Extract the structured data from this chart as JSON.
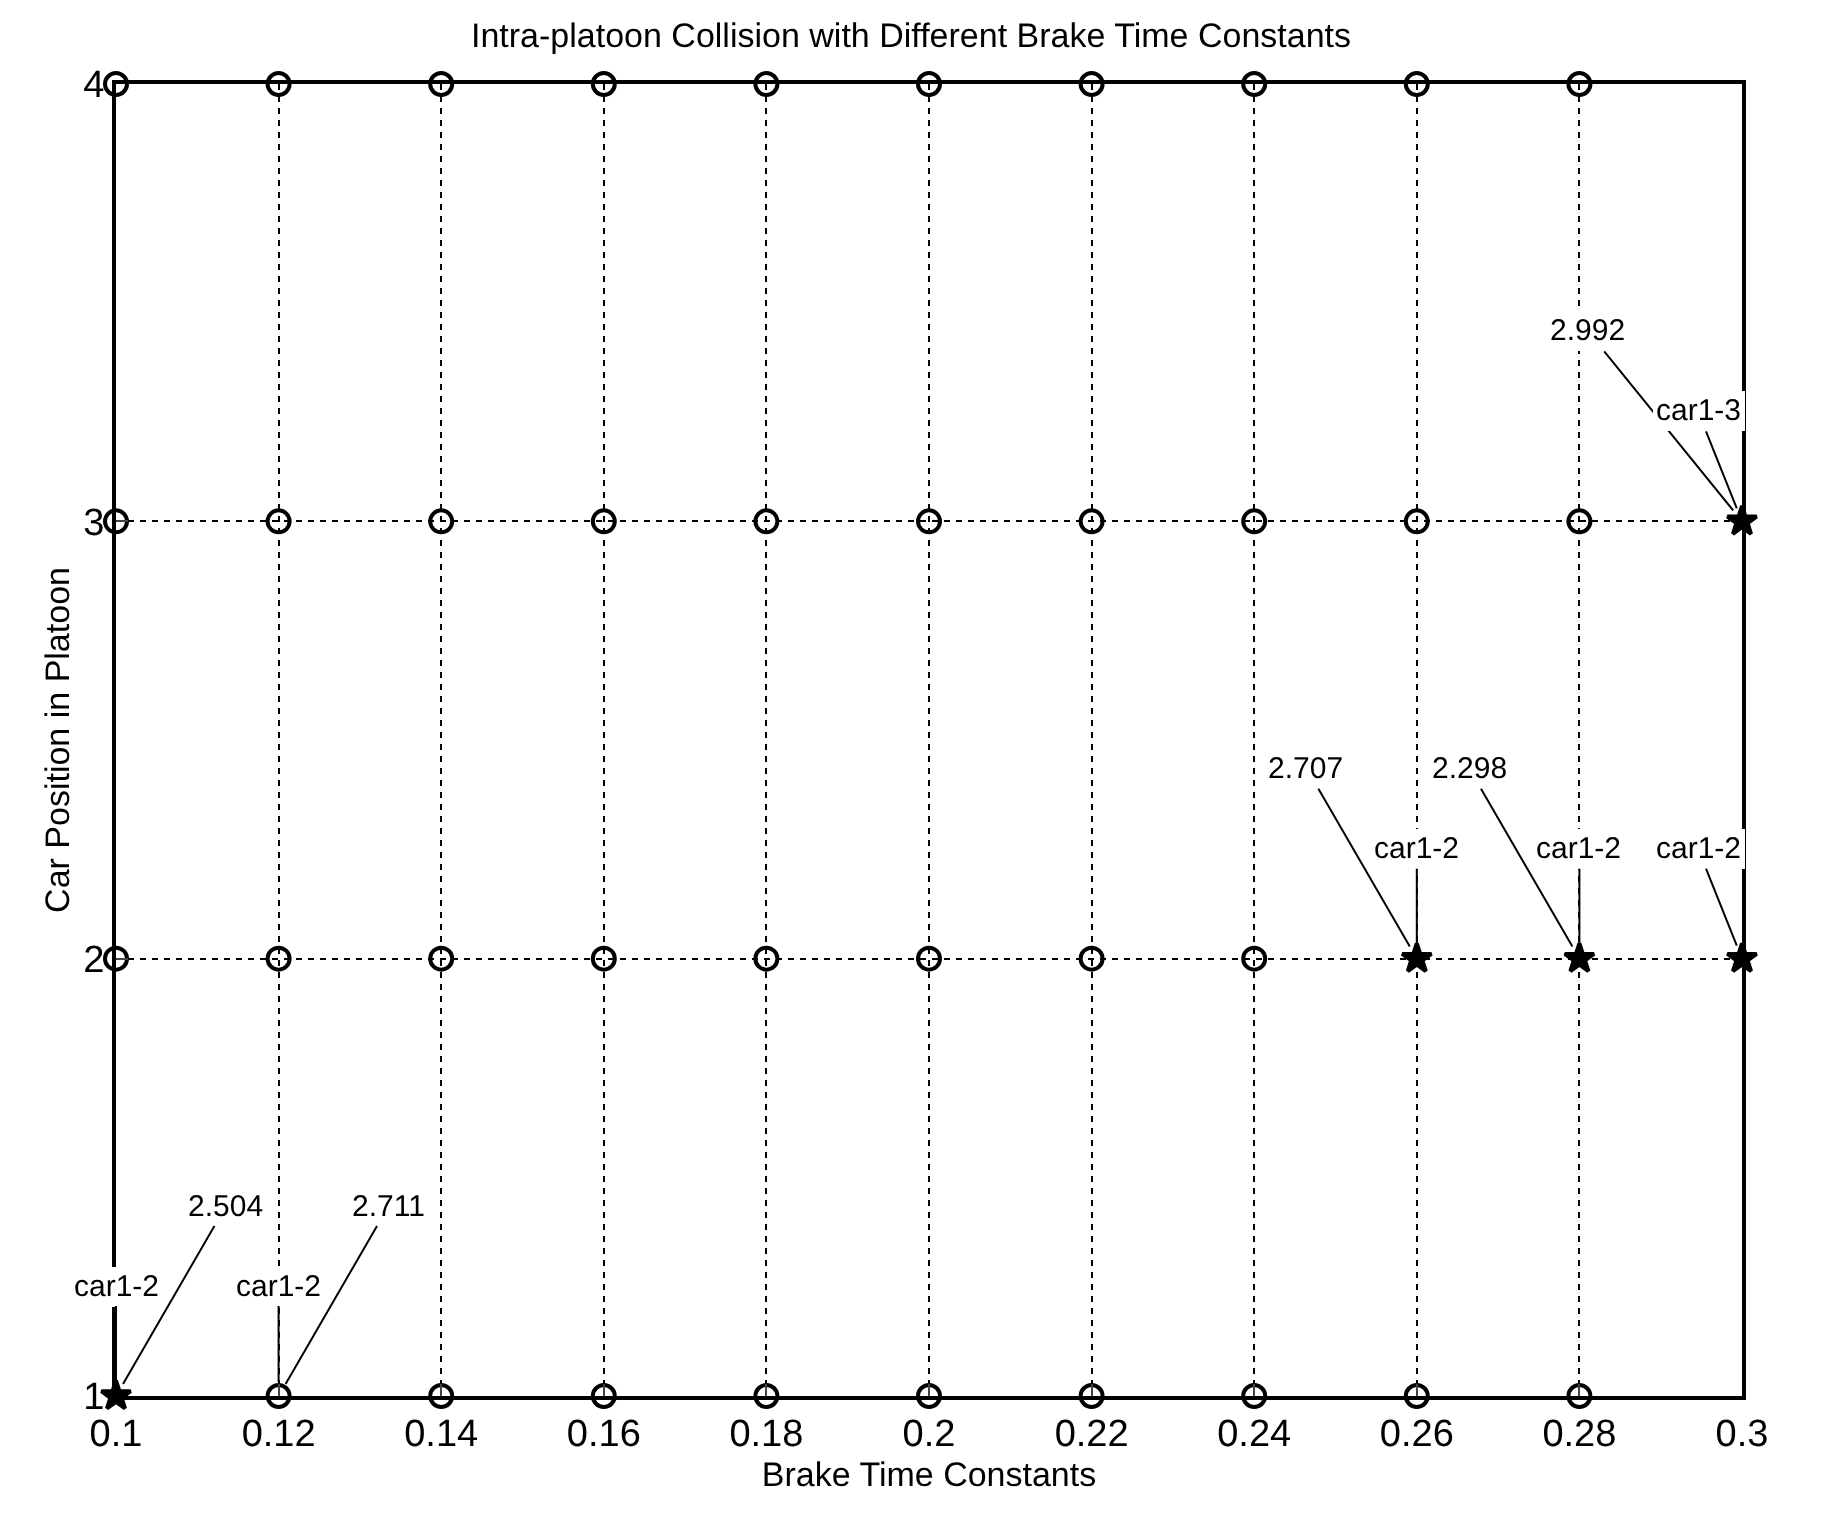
{
  "chart_data": {
    "type": "scatter",
    "title": "Intra-platoon Collision with Different Brake Time Constants",
    "xlabel": "Brake Time Constants",
    "ylabel": "Car Position in Platoon",
    "xlim": [
      0.1,
      0.3
    ],
    "ylim": [
      1,
      4
    ],
    "xticks": [
      0.1,
      0.12,
      0.14,
      0.16,
      0.18,
      0.2,
      0.22,
      0.24,
      0.26,
      0.28,
      0.3
    ],
    "yticks": [
      1,
      2,
      3,
      4
    ],
    "grid": true,
    "line_style": "dotted",
    "legend": false,
    "series": [
      {
        "color": "#000000",
        "marker": "circle",
        "x": [
          0.1,
          0.12,
          0.14,
          0.16,
          0.18,
          0.2,
          0.22,
          0.24,
          0.26,
          0.28,
          0.1,
          0.12,
          0.14,
          0.16,
          0.18,
          0.2,
          0.22,
          0.24,
          0.26,
          0.28,
          0.1,
          0.12,
          0.14,
          0.16,
          0.18,
          0.2,
          0.22,
          0.24,
          0.12,
          0.14,
          0.16,
          0.18,
          0.2,
          0.22,
          0.24,
          0.26,
          0.28
        ],
        "values": [
          4,
          4,
          4,
          4,
          4,
          4,
          4,
          4,
          4,
          4,
          3,
          3,
          3,
          3,
          3,
          3,
          3,
          3,
          3,
          3,
          2,
          2,
          2,
          2,
          2,
          2,
          2,
          2,
          1,
          1,
          1,
          1,
          1,
          1,
          1,
          1,
          1
        ]
      },
      {
        "color": "#000000",
        "marker": "star",
        "x": [
          0.1,
          0.26,
          0.28,
          0.3,
          0.3
        ],
        "values": [
          1,
          2,
          2,
          2,
          3
        ]
      }
    ],
    "annotations": [
      {
        "text": "2.504",
        "x": 0.1,
        "y": 1
      },
      {
        "text": "car1-2",
        "x": 0.1,
        "y": 1
      },
      {
        "text": "2.711",
        "x": 0.12,
        "y": 1
      },
      {
        "text": "car1-2",
        "x": 0.12,
        "y": 1
      },
      {
        "text": "2.707",
        "x": 0.26,
        "y": 2
      },
      {
        "text": "car1-2",
        "x": 0.26,
        "y": 2
      },
      {
        "text": "2.298",
        "x": 0.28,
        "y": 2
      },
      {
        "text": "car1-2",
        "x": 0.28,
        "y": 2
      },
      {
        "text": "car1-2",
        "x": 0.3,
        "y": 2
      },
      {
        "text": "2.992",
        "x": 0.3,
        "y": 3
      },
      {
        "text": "car1-3",
        "x": 0.3,
        "y": 3
      }
    ]
  }
}
